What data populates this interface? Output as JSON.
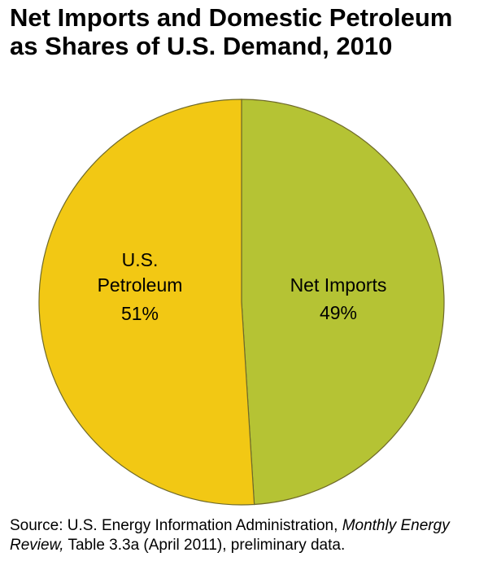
{
  "chart_data": {
    "type": "pie",
    "title": "Net Imports and Domestic Petroleum as Shares of U.S. Demand, 2010",
    "slices": [
      {
        "name": "Net Imports",
        "value": 49,
        "label": "49%",
        "color": "#B5C334"
      },
      {
        "name": "U.S. Petroleum",
        "value": 51,
        "label": "51%",
        "color": "#F2C814"
      }
    ],
    "start": "top",
    "direction": "clockwise",
    "legend": "none"
  },
  "source": {
    "prefix": "Source: U.S. Energy Information Administration, ",
    "italic": "Monthly Energy Review,",
    "suffix": " Table 3.3a (April 2011), preliminary data."
  }
}
